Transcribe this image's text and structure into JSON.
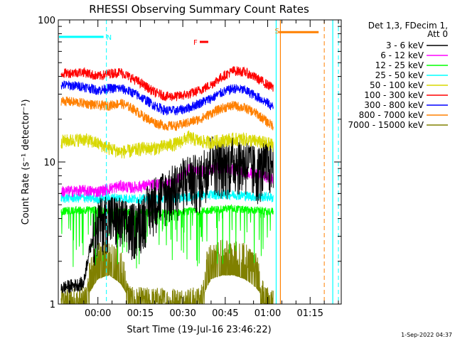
{
  "chart_data": {
    "type": "line",
    "title": "RHESSI Observing Summary Count Rates",
    "xlabel": "Start Time (19-Jul-16 23:46:22)",
    "ylabel": "Count Rate (s⁻¹ detector⁻¹)",
    "yscale": "log",
    "ylim": [
      1,
      100
    ],
    "xlim_min": [
      -14,
      86
    ],
    "x_tick_labels": [
      "00:00",
      "00:15",
      "00:30",
      "00:45",
      "01:00",
      "01:15"
    ],
    "x_tick_values_min": [
      0,
      15,
      30,
      45,
      60,
      75
    ],
    "y_tick_labels": [
      "1",
      "10",
      "100"
    ],
    "y_tick_values": [
      1,
      10,
      100
    ],
    "legend_header": [
      "Det 1,3, FDecim 1,",
      "Att 0"
    ],
    "legend_position": "right",
    "series": [
      {
        "name": "3 - 6 keV",
        "color": "#000000",
        "x_min": [
          -13,
          -5,
          0,
          4,
          8,
          12,
          16,
          20,
          24,
          28,
          32,
          36,
          40,
          44,
          48,
          52,
          56,
          60,
          62
        ],
        "values": [
          1.3,
          1.4,
          3.8,
          4.2,
          3.9,
          3.5,
          4.2,
          5.5,
          6.2,
          6.8,
          8.0,
          7.5,
          11.0,
          9.5,
          10.5,
          10.2,
          8.8,
          9.8,
          10.0
        ]
      },
      {
        "name": "6 - 12 keV",
        "color": "#ff00ff",
        "x_min": [
          -13,
          -5,
          0,
          4,
          8,
          12,
          16,
          20,
          24,
          28,
          32,
          36,
          40,
          44,
          48,
          52,
          56,
          60,
          62
        ],
        "values": [
          6.2,
          6.3,
          6.2,
          6.5,
          6.8,
          6.6,
          6.8,
          6.9,
          7.0,
          7.4,
          9.0,
          8.5,
          9.0,
          9.2,
          8.8,
          8.6,
          8.2,
          7.8,
          7.6
        ]
      },
      {
        "name": "12 - 25 keV",
        "color": "#00ff00",
        "x_min": [
          -13,
          -5,
          0,
          4,
          8,
          12,
          16,
          20,
          24,
          28,
          32,
          36,
          40,
          44,
          48,
          52,
          56,
          60,
          62
        ],
        "values": [
          4.5,
          4.6,
          4.6,
          4.5,
          4.5,
          4.4,
          4.4,
          4.4,
          4.4,
          4.4,
          4.5,
          4.5,
          4.6,
          4.7,
          4.7,
          4.6,
          4.6,
          4.5,
          4.5
        ]
      },
      {
        "name": "25 - 50 keV",
        "color": "#00ffff",
        "x_min": [
          -13,
          -5,
          0,
          4,
          8,
          12,
          16,
          20,
          24,
          28,
          32,
          36,
          40,
          44,
          48,
          52,
          56,
          60,
          62
        ],
        "values": [
          5.6,
          5.6,
          5.5,
          5.6,
          5.6,
          5.5,
          5.5,
          5.5,
          5.5,
          5.6,
          5.7,
          5.8,
          5.9,
          5.9,
          5.9,
          5.8,
          5.7,
          5.7,
          5.6
        ]
      },
      {
        "name": "50 - 100 keV",
        "color": "#d8d800",
        "x_min": [
          -13,
          -5,
          0,
          4,
          8,
          12,
          16,
          20,
          24,
          28,
          32,
          36,
          40,
          44,
          48,
          52,
          56,
          60,
          62
        ],
        "values": [
          14.0,
          14.5,
          13.5,
          12.5,
          11.8,
          12.0,
          12.5,
          12.5,
          13.0,
          13.5,
          15.0,
          14.0,
          13.8,
          14.2,
          14.5,
          14.5,
          14.0,
          13.5,
          13.2
        ]
      },
      {
        "name": "100 - 300 keV",
        "color": "#ff0000",
        "x_min": [
          -13,
          -5,
          0,
          4,
          8,
          12,
          16,
          20,
          24,
          28,
          32,
          36,
          40,
          44,
          48,
          52,
          56,
          60,
          62
        ],
        "values": [
          42,
          43,
          40,
          42,
          43,
          39,
          35,
          31,
          29,
          29,
          30,
          32,
          35,
          40,
          44,
          43,
          39,
          35,
          33
        ]
      },
      {
        "name": "300 - 800 keV",
        "color": "#0000ff",
        "x_min": [
          -13,
          -5,
          0,
          4,
          8,
          12,
          16,
          20,
          24,
          28,
          32,
          36,
          40,
          44,
          48,
          52,
          56,
          60,
          62
        ],
        "values": [
          35,
          34,
          32,
          33,
          33,
          31,
          28,
          25,
          23,
          23,
          24,
          26,
          28,
          31,
          33,
          32,
          29,
          26,
          24
        ]
      },
      {
        "name": "800 - 7000 keV",
        "color": "#ff8000",
        "x_min": [
          -13,
          -5,
          0,
          4,
          8,
          12,
          16,
          20,
          24,
          28,
          32,
          36,
          40,
          44,
          48,
          52,
          56,
          60,
          62
        ],
        "values": [
          27,
          26,
          25,
          25,
          26,
          24,
          21,
          19,
          18,
          18,
          19,
          20,
          22,
          24,
          25,
          24,
          22,
          19,
          18
        ]
      },
      {
        "name": "7000 - 15000 keV",
        "color": "#808000",
        "x_min": [
          -13,
          -5,
          0,
          4,
          8,
          12,
          16,
          20,
          24,
          28,
          32,
          36,
          40,
          44,
          48,
          52,
          56,
          60,
          62
        ],
        "values": [
          1.0,
          1.0,
          1.5,
          1.6,
          1.4,
          1.0,
          1.0,
          1.0,
          1.0,
          1.0,
          1.0,
          1.0,
          1.5,
          1.6,
          1.6,
          1.5,
          1.3,
          1.0,
          1.0
        ]
      }
    ],
    "annotations": [
      {
        "label": "N",
        "color": "#00ffff",
        "x_start_min": -14,
        "x_end_min": 2,
        "y": 76
      },
      {
        "label": "F",
        "color": "#ff0000",
        "x_start_min": 36,
        "x_end_min": 39,
        "y": 70
      },
      {
        "label": "S",
        "color": "#ff8000",
        "x_start_min": 64,
        "x_end_min": 78,
        "y": 82
      }
    ],
    "cyan_solid_lines_min": [
      63,
      83
    ],
    "cyan_dashed_lines_min": [
      3,
      85
    ],
    "orange_solid_lines_min": [
      64.5
    ],
    "orange_dashed_lines_min": [
      80
    ],
    "footer_date": "1-Sep-2022 04:37"
  }
}
